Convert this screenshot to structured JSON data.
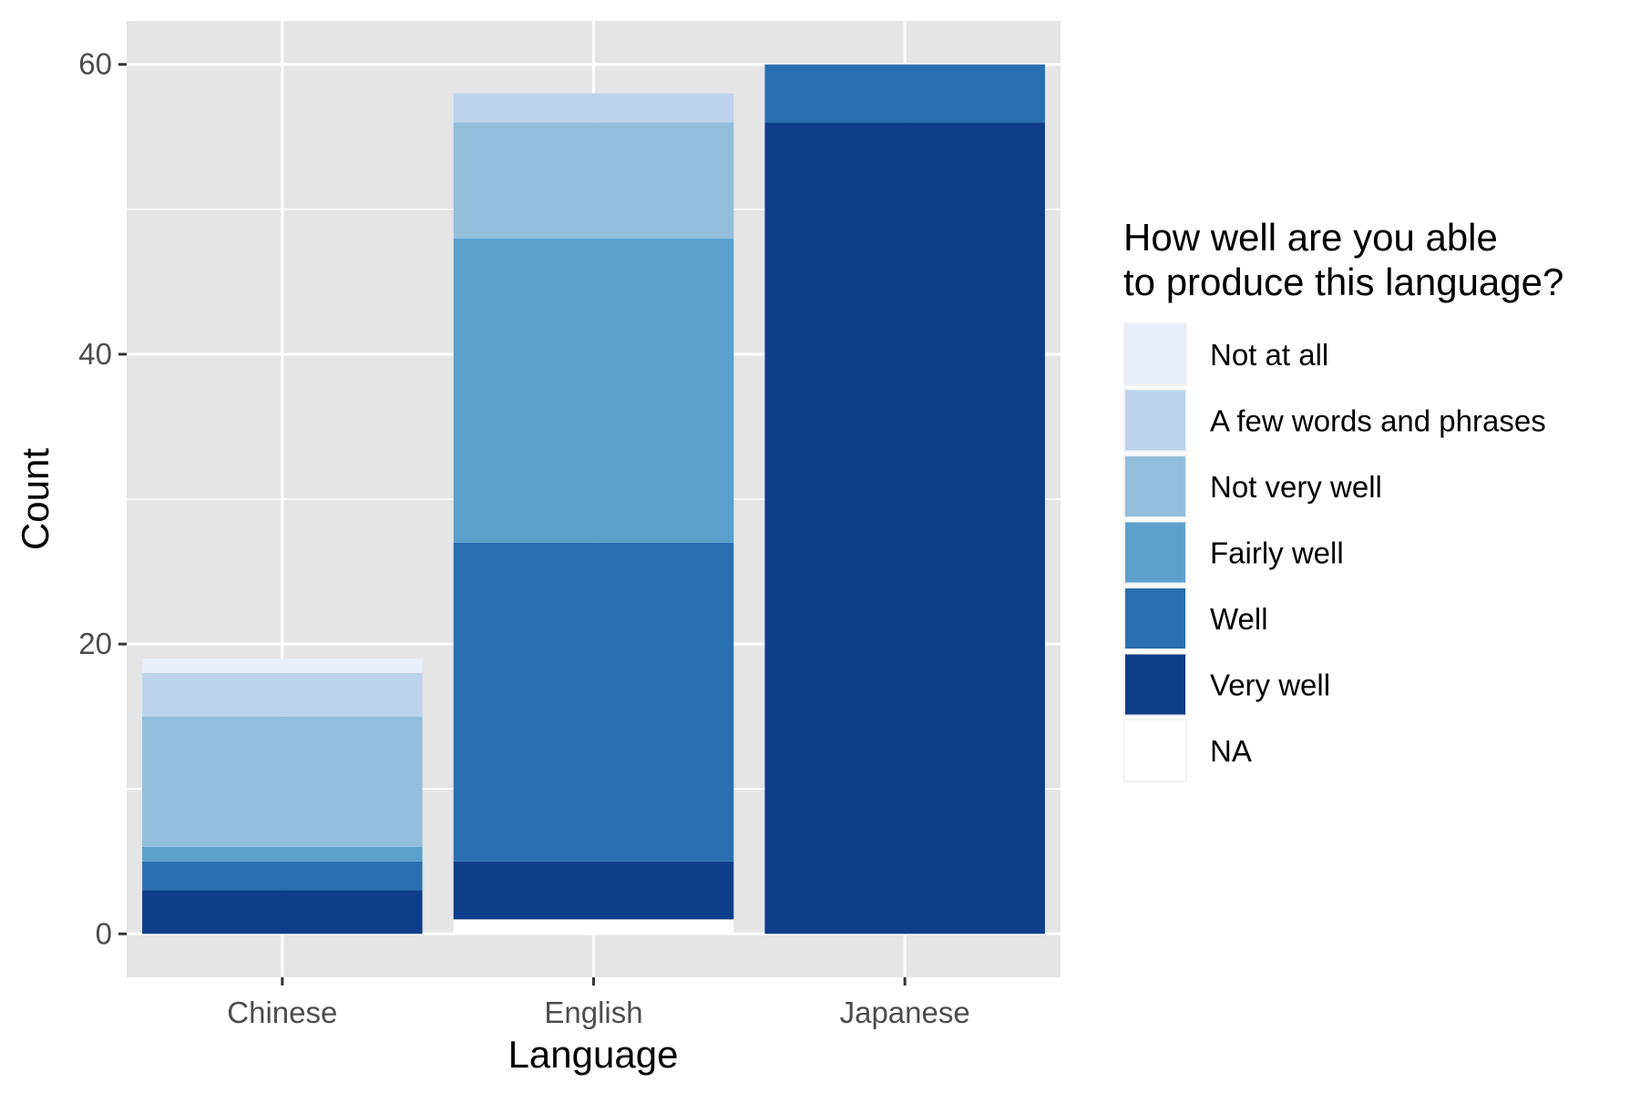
{
  "chart_data": {
    "type": "bar",
    "stacked": true,
    "categories": [
      "Chinese",
      "English",
      "Japanese"
    ],
    "series": [
      {
        "name": "NA",
        "values": [
          0,
          1,
          0
        ],
        "color": "#ffffff"
      },
      {
        "name": "Very well",
        "values": [
          3,
          4,
          56
        ],
        "color": "#0e3e8a"
      },
      {
        "name": "Well",
        "values": [
          2,
          22,
          4
        ],
        "color": "#2a6fb0"
      },
      {
        "name": "Fairly well",
        "values": [
          1,
          21,
          0
        ],
        "color": "#5ba0cc"
      },
      {
        "name": "Not very well",
        "values": [
          9,
          8,
          0
        ],
        "color": "#92bedc"
      },
      {
        "name": "A few words and phrases",
        "values": [
          3,
          2,
          0
        ],
        "color": "#bcd3eb"
      },
      {
        "name": "Not at all",
        "values": [
          1,
          0,
          0
        ],
        "color": "#e8eefa"
      }
    ],
    "legend_order": [
      "Not at all",
      "A few words and phrases",
      "Not very well",
      "Fairly well",
      "Well",
      "Very well",
      "NA"
    ],
    "title": "",
    "xlabel": "Language",
    "ylabel": "Count",
    "ylim": [
      -3,
      63
    ],
    "yticks": [
      0,
      20,
      40,
      60
    ],
    "legend_title": [
      "How well are you able",
      "to produce this language?"
    ],
    "legend_position": "right",
    "grid": true,
    "panel_background": "#e5e5e5",
    "grid_color": "#ffffff"
  }
}
